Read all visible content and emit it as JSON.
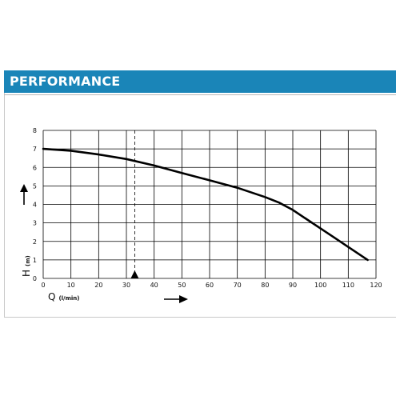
{
  "header": {
    "title": "PERFORMANCE"
  },
  "chart_data": {
    "type": "line",
    "title": "PERFORMANCE",
    "xlabel": "Q",
    "xunit": "(l/min)",
    "ylabel": "H",
    "yunit": "(m)",
    "xlim": [
      0,
      120
    ],
    "ylim": [
      0,
      8
    ],
    "x_ticks": [
      "0",
      "10",
      "20",
      "30",
      "40",
      "50",
      "60",
      "70",
      "80",
      "90",
      "100",
      "110",
      "120"
    ],
    "y_ticks": [
      "0",
      "1",
      "2",
      "3",
      "4",
      "5",
      "6",
      "7",
      "8"
    ],
    "grid": true,
    "series": [
      {
        "x": [
          0,
          10,
          20,
          30,
          40,
          50,
          60,
          70,
          80,
          85,
          90,
          95,
          100,
          105,
          110,
          117
        ],
        "y": [
          7.0,
          6.9,
          6.7,
          6.45,
          6.1,
          5.7,
          5.3,
          4.9,
          4.4,
          4.1,
          3.7,
          3.2,
          2.7,
          2.2,
          1.7,
          1.0
        ]
      }
    ],
    "marker_x": 33,
    "colors": {
      "line": "#000000",
      "grid": "#000000",
      "header": "#1a85b8"
    }
  }
}
